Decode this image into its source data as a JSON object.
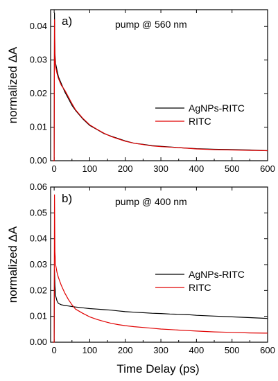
{
  "figure": {
    "xlabel": "Time Delay (ps)"
  },
  "chart_data": [
    {
      "type": "line",
      "panel_label": "a)",
      "annotation": "pump @ 560 nm",
      "ylabel": "normalized ΔA",
      "xlim": [
        -10,
        600
      ],
      "ylim": [
        0,
        0.045
      ],
      "x_ticks": [
        0,
        100,
        200,
        300,
        400,
        500,
        600
      ],
      "y_ticks": [
        0.0,
        0.01,
        0.02,
        0.03,
        0.04
      ],
      "y_tick_labels": [
        "0.00",
        "0.01",
        "0.02",
        "0.03",
        "0.04"
      ],
      "legend_position": "right",
      "grid": false,
      "series": [
        {
          "name": "AgNPs-RITC",
          "color": "#000000",
          "x": [
            -3,
            0,
            1,
            2,
            4,
            8,
            12,
            20,
            30,
            40,
            50,
            60,
            80,
            100,
            120,
            140,
            160,
            180,
            200,
            225,
            250,
            275,
            300,
            350,
            400,
            450,
            500,
            550,
            600
          ],
          "y": [
            0.0,
            0.0,
            0.044,
            0.032,
            0.029,
            0.027,
            0.025,
            0.023,
            0.0205,
            0.0185,
            0.0165,
            0.015,
            0.0125,
            0.0105,
            0.0093,
            0.0081,
            0.0073,
            0.0066,
            0.0059,
            0.0052,
            0.0049,
            0.0045,
            0.0043,
            0.0039,
            0.0036,
            0.0034,
            0.0033,
            0.0032,
            0.003
          ]
        },
        {
          "name": "RITC",
          "color": "#e00000",
          "x": [
            -3,
            0,
            1,
            2,
            4,
            8,
            12,
            20,
            30,
            40,
            50,
            60,
            80,
            100,
            120,
            140,
            160,
            180,
            200,
            225,
            250,
            275,
            300,
            350,
            400,
            450,
            500,
            550,
            600
          ],
          "y": [
            0.0,
            0.0,
            0.042,
            0.031,
            0.028,
            0.026,
            0.0245,
            0.0225,
            0.021,
            0.019,
            0.017,
            0.0152,
            0.0127,
            0.0107,
            0.0094,
            0.0082,
            0.0072,
            0.0065,
            0.0058,
            0.0052,
            0.0048,
            0.0044,
            0.0042,
            0.0039,
            0.0035,
            0.0033,
            0.0032,
            0.0031,
            0.003
          ]
        }
      ]
    },
    {
      "type": "line",
      "panel_label": "b)",
      "annotation": "pump @ 400 nm",
      "ylabel": "normalized ΔA",
      "xlabel": "Time Delay (ps)",
      "xlim": [
        -10,
        600
      ],
      "ylim": [
        0,
        0.06
      ],
      "x_ticks": [
        0,
        100,
        200,
        300,
        400,
        500,
        600
      ],
      "y_ticks": [
        0.0,
        0.01,
        0.02,
        0.03,
        0.04,
        0.05,
        0.06
      ],
      "y_tick_labels": [
        "0.00",
        "0.01",
        "0.02",
        "0.03",
        "0.04",
        "0.05",
        "0.06"
      ],
      "legend_position": "right",
      "grid": false,
      "series": [
        {
          "name": "AgNPs-RITC",
          "color": "#000000",
          "x": [
            -3,
            0,
            1,
            2,
            4,
            8,
            12,
            20,
            30,
            40,
            50,
            60,
            80,
            100,
            120,
            140,
            160,
            180,
            200,
            225,
            250,
            275,
            300,
            325,
            350,
            375,
            400,
            450,
            500,
            550,
            600
          ],
          "y": [
            0.0,
            0.0,
            0.028,
            0.022,
            0.018,
            0.016,
            0.015,
            0.0145,
            0.0142,
            0.014,
            0.0138,
            0.0136,
            0.0133,
            0.013,
            0.0128,
            0.0126,
            0.0124,
            0.0121,
            0.0118,
            0.0116,
            0.0114,
            0.0112,
            0.0111,
            0.0109,
            0.0108,
            0.0107,
            0.0104,
            0.0101,
            0.0098,
            0.0095,
            0.0092
          ]
        },
        {
          "name": "RITC",
          "color": "#e00000",
          "x": [
            -3,
            0,
            1,
            2,
            4,
            8,
            12,
            20,
            30,
            40,
            50,
            60,
            80,
            100,
            120,
            140,
            160,
            180,
            200,
            225,
            250,
            275,
            300,
            325,
            350,
            375,
            400,
            450,
            500,
            550,
            600
          ],
          "y": [
            0.0,
            0.0,
            0.057,
            0.035,
            0.03,
            0.027,
            0.025,
            0.022,
            0.019,
            0.0165,
            0.0145,
            0.0128,
            0.0112,
            0.0098,
            0.0088,
            0.008,
            0.0073,
            0.0068,
            0.0064,
            0.006,
            0.0057,
            0.0054,
            0.0051,
            0.0049,
            0.0047,
            0.0045,
            0.0043,
            0.004,
            0.0038,
            0.0036,
            0.0035
          ]
        }
      ]
    }
  ]
}
